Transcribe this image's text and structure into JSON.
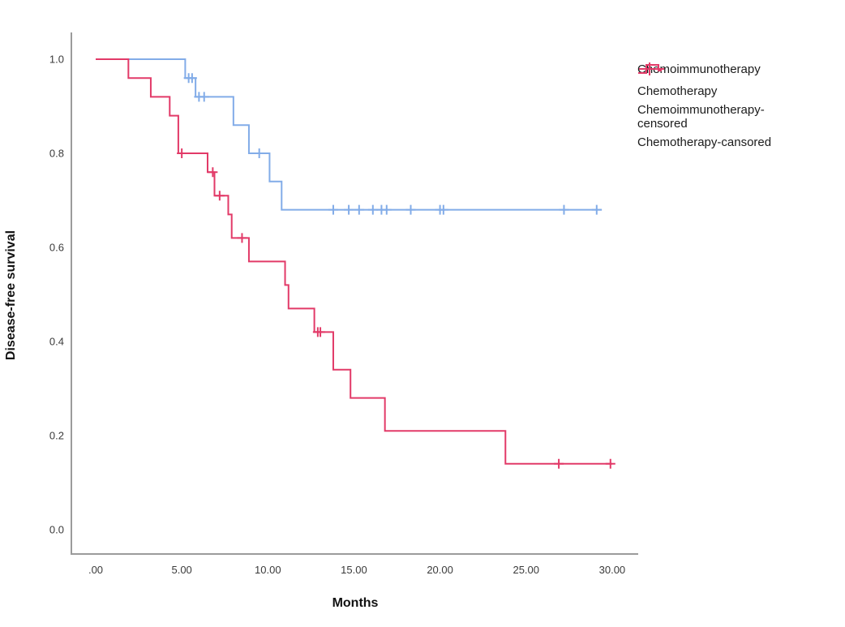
{
  "figure": {
    "background": "#ffffff",
    "axis_color": "#9b9b9b",
    "tick_text_color": "#3a3a3a",
    "blue": "#82ace8",
    "red": "#e23a68"
  },
  "chart_data": {
    "type": "line",
    "subtype": "kaplan-meier-step",
    "title": "",
    "xlabel": "Months",
    "ylabel": "Disease-free survival",
    "grid": false,
    "legend_position": "right",
    "xlim": [
      -1.4,
      31.5
    ],
    "ylim": [
      -0.05,
      1.06
    ],
    "x_ticks": [
      {
        "value": 0,
        "label": ".00"
      },
      {
        "value": 5,
        "label": "5.00"
      },
      {
        "value": 10,
        "label": "10.00"
      },
      {
        "value": 15,
        "label": "15.00"
      },
      {
        "value": 20,
        "label": "20.00"
      },
      {
        "value": 25,
        "label": "25.00"
      },
      {
        "value": 30,
        "label": "30.00"
      }
    ],
    "y_ticks": [
      {
        "value": 0.0,
        "label": "0.0"
      },
      {
        "value": 0.2,
        "label": "0.2"
      },
      {
        "value": 0.4,
        "label": "0.4"
      },
      {
        "value": 0.6,
        "label": "0.6"
      },
      {
        "value": 0.8,
        "label": "0.8"
      },
      {
        "value": 1.0,
        "label": "1.0"
      }
    ],
    "series": [
      {
        "name": "Chemoimmunotherapy",
        "color": "#82ace8",
        "steps": [
          [
            0,
            1.0
          ],
          [
            5.2,
            0.96
          ],
          [
            5.8,
            0.92
          ],
          [
            8.0,
            0.86
          ],
          [
            8.9,
            0.8
          ],
          [
            10.1,
            0.74
          ],
          [
            10.8,
            0.68
          ]
        ],
        "end_time": 29.4,
        "censored": [
          [
            5.4,
            0.96
          ],
          [
            5.6,
            0.96
          ],
          [
            6.0,
            0.92
          ],
          [
            6.3,
            0.92
          ],
          [
            9.5,
            0.8
          ],
          [
            13.8,
            0.68
          ],
          [
            14.7,
            0.68
          ],
          [
            15.3,
            0.68
          ],
          [
            16.1,
            0.68
          ],
          [
            16.6,
            0.68
          ],
          [
            16.9,
            0.68
          ],
          [
            18.3,
            0.68
          ],
          [
            20.0,
            0.68
          ],
          [
            20.2,
            0.68
          ],
          [
            27.2,
            0.68
          ],
          [
            29.1,
            0.68
          ]
        ]
      },
      {
        "name": "Chemotherapy",
        "color": "#e23a68",
        "steps": [
          [
            0,
            1.0
          ],
          [
            1.9,
            0.96
          ],
          [
            3.2,
            0.92
          ],
          [
            4.3,
            0.88
          ],
          [
            4.8,
            0.8
          ],
          [
            6.5,
            0.76
          ],
          [
            6.9,
            0.71
          ],
          [
            7.7,
            0.67
          ],
          [
            7.9,
            0.62
          ],
          [
            8.9,
            0.57
          ],
          [
            11.0,
            0.52
          ],
          [
            11.2,
            0.47
          ],
          [
            12.7,
            0.42
          ],
          [
            13.8,
            0.34
          ],
          [
            14.8,
            0.28
          ],
          [
            16.8,
            0.21
          ],
          [
            23.8,
            0.14
          ]
        ],
        "end_time": 30.0,
        "censored": [
          [
            5.0,
            0.8
          ],
          [
            6.8,
            0.76
          ],
          [
            7.2,
            0.71
          ],
          [
            8.5,
            0.62
          ],
          [
            12.9,
            0.42
          ],
          [
            13.05,
            0.42
          ],
          [
            26.9,
            0.14
          ],
          [
            29.9,
            0.14
          ]
        ]
      }
    ],
    "legend": [
      {
        "label": "Chemoimmunotherapy",
        "marker": "step-line",
        "color": "#82ace8"
      },
      {
        "label": "Chemotherapy",
        "marker": "step-line",
        "color": "#e23a68"
      },
      {
        "label": "Chemoimmunotherapy-\ncensored",
        "marker": "plus",
        "color": "#82ace8"
      },
      {
        "label": "Chemotherapy-cansored",
        "marker": "plus",
        "color": "#e23a68"
      }
    ]
  }
}
